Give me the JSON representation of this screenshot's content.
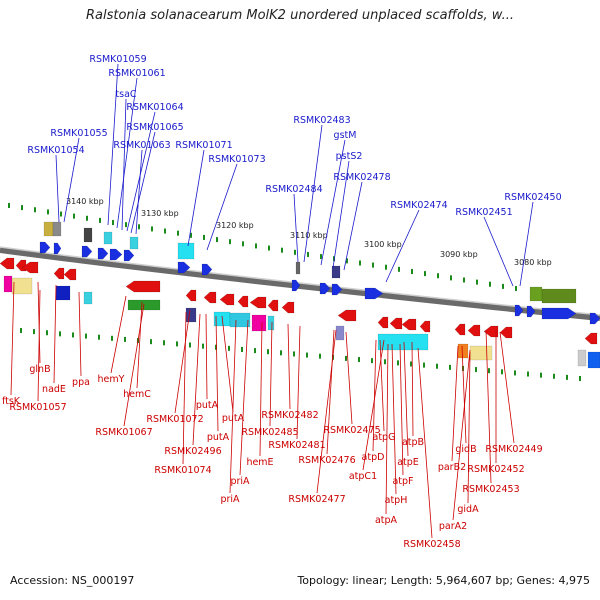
{
  "title": "Ralstonia solanacearum MolK2 unordered unplaced scaffolds, w...",
  "footer": {
    "accession": "Accession: NS_000197",
    "topology": "Topology: linear; Length: 5,964,607 bp; Genes: 4,975"
  },
  "colors": {
    "forward_label": "#1a1acc",
    "reverse_label": "#cc0000",
    "forward_gene": "#1a2fe0",
    "reverse_gene": "#e01010",
    "backbone": "#888888",
    "tick": "#1a8a1a"
  },
  "ticks": [
    "3140 kbp",
    "3130 kbp",
    "3120 kbp",
    "3110 kbp",
    "3100 kbp",
    "3090 kbp",
    "3080 kbp"
  ],
  "top_labels": [
    "RSMK01059",
    "RSMK01061",
    "tsaC",
    "RSMK01064",
    "RSMK01065",
    "RSMK01055",
    "RSMK01063",
    "RSMK01071",
    "RSMK01054",
    "RSMK01073",
    "RSMK02483",
    "gstM",
    "pstS2",
    "RSMK02478",
    "RSMK02484",
    "RSMK02474",
    "RSMK02450",
    "RSMK02451"
  ],
  "bottom_labels": [
    "ftsK",
    "glnB",
    "nadE",
    "ppa",
    "hemY",
    "RSMK01057",
    "hemC",
    "RSMK01067",
    "RSMK01072",
    "putA",
    "putA",
    "putA",
    "RSMK02496",
    "RSMK01074",
    "priA",
    "priA",
    "hemE",
    "RSMK02485",
    "RSMK02482",
    "RSMK02481",
    "RSMK02476",
    "RSMK02475",
    "RSMK02477",
    "atpG",
    "atpD",
    "atpB",
    "atpE",
    "atpC1",
    "atpF",
    "atpH",
    "atpA",
    "gidB",
    "parB2",
    "RSMK02449",
    "RSMK02452",
    "RSMK02453",
    "gidA",
    "parA2",
    "RSMK02458"
  ]
}
